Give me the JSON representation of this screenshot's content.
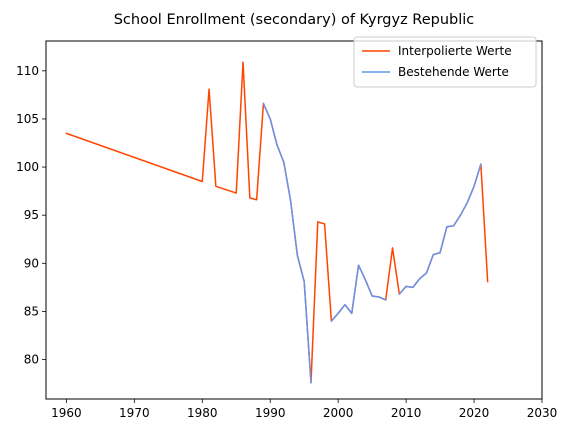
{
  "chart_data": {
    "type": "line",
    "title": "School Enrollment (secondary) of Kyrgyz Republic",
    "xlabel": "",
    "ylabel": "",
    "xlim": [
      1957,
      2030
    ],
    "ylim": [
      75.9,
      113.1
    ],
    "xticks": [
      1960,
      1970,
      1980,
      1990,
      2000,
      2010,
      2020,
      2030
    ],
    "yticks": [
      80,
      85,
      90,
      95,
      100,
      105,
      110
    ],
    "grid": false,
    "legend_position": "top-right",
    "series": [
      {
        "name": "Interpolierte Werte",
        "color": "#FF4500",
        "x": [
          1960,
          1980,
          1981,
          1982,
          1985,
          1986,
          1987,
          1988,
          1989,
          1990,
          1991,
          1992,
          1993,
          1994,
          1995,
          1996,
          1997,
          1998,
          1999,
          2000,
          2001,
          2002,
          2003,
          2004,
          2005,
          2006,
          2007,
          2008,
          2009,
          2010,
          2011,
          2012,
          2013,
          2014,
          2015,
          2016,
          2017,
          2018,
          2019,
          2020,
          2021,
          2022
        ],
        "y": [
          103.5,
          98.5,
          108.1,
          98.0,
          97.3,
          110.9,
          96.8,
          96.6,
          106.6,
          105.0,
          102.3,
          100.5,
          96.5,
          90.8,
          88.1,
          77.6,
          94.3,
          94.1,
          84.0,
          84.8,
          85.7,
          84.8,
          89.8,
          88.3,
          86.6,
          86.5,
          86.2,
          91.6,
          86.8,
          87.6,
          87.5,
          88.4,
          89.0,
          90.9,
          91.1,
          93.8,
          93.9,
          95.0,
          96.3,
          98.0,
          100.3,
          88.1
        ]
      },
      {
        "name": "Bestehende Werte",
        "color": "#6495ED",
        "segments": [
          {
            "x": [
              1989,
              1990,
              1991,
              1992,
              1993,
              1994,
              1995,
              1996
            ],
            "y": [
              106.6,
              105.0,
              102.3,
              100.5,
              96.5,
              90.8,
              88.1,
              77.6
            ]
          },
          {
            "x": [
              1999,
              2000,
              2001,
              2002,
              2003,
              2004,
              2005,
              2006,
              2007
            ],
            "y": [
              84.0,
              84.8,
              85.7,
              84.8,
              89.8,
              88.3,
              86.6,
              86.5,
              86.2
            ]
          },
          {
            "x": [
              2009,
              2010,
              2011,
              2012,
              2013,
              2014,
              2015,
              2016,
              2017,
              2018,
              2019,
              2020,
              2021
            ],
            "y": [
              86.8,
              87.6,
              87.5,
              88.4,
              89.0,
              90.9,
              91.1,
              93.8,
              93.9,
              95.0,
              96.3,
              98.0,
              100.3
            ]
          }
        ]
      }
    ]
  }
}
